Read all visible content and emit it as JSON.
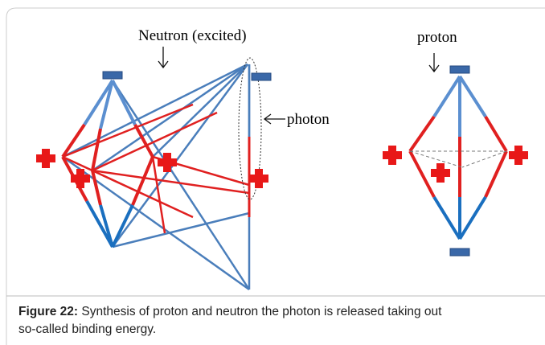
{
  "labels": {
    "neutron": "Neutron (excited)",
    "photon": "photon",
    "proton": "proton"
  },
  "caption": {
    "label": "Figure 22:",
    "text": "Synthesis of proton and neutron the photon is released taking out",
    "text2": "so-called binding energy."
  }
}
